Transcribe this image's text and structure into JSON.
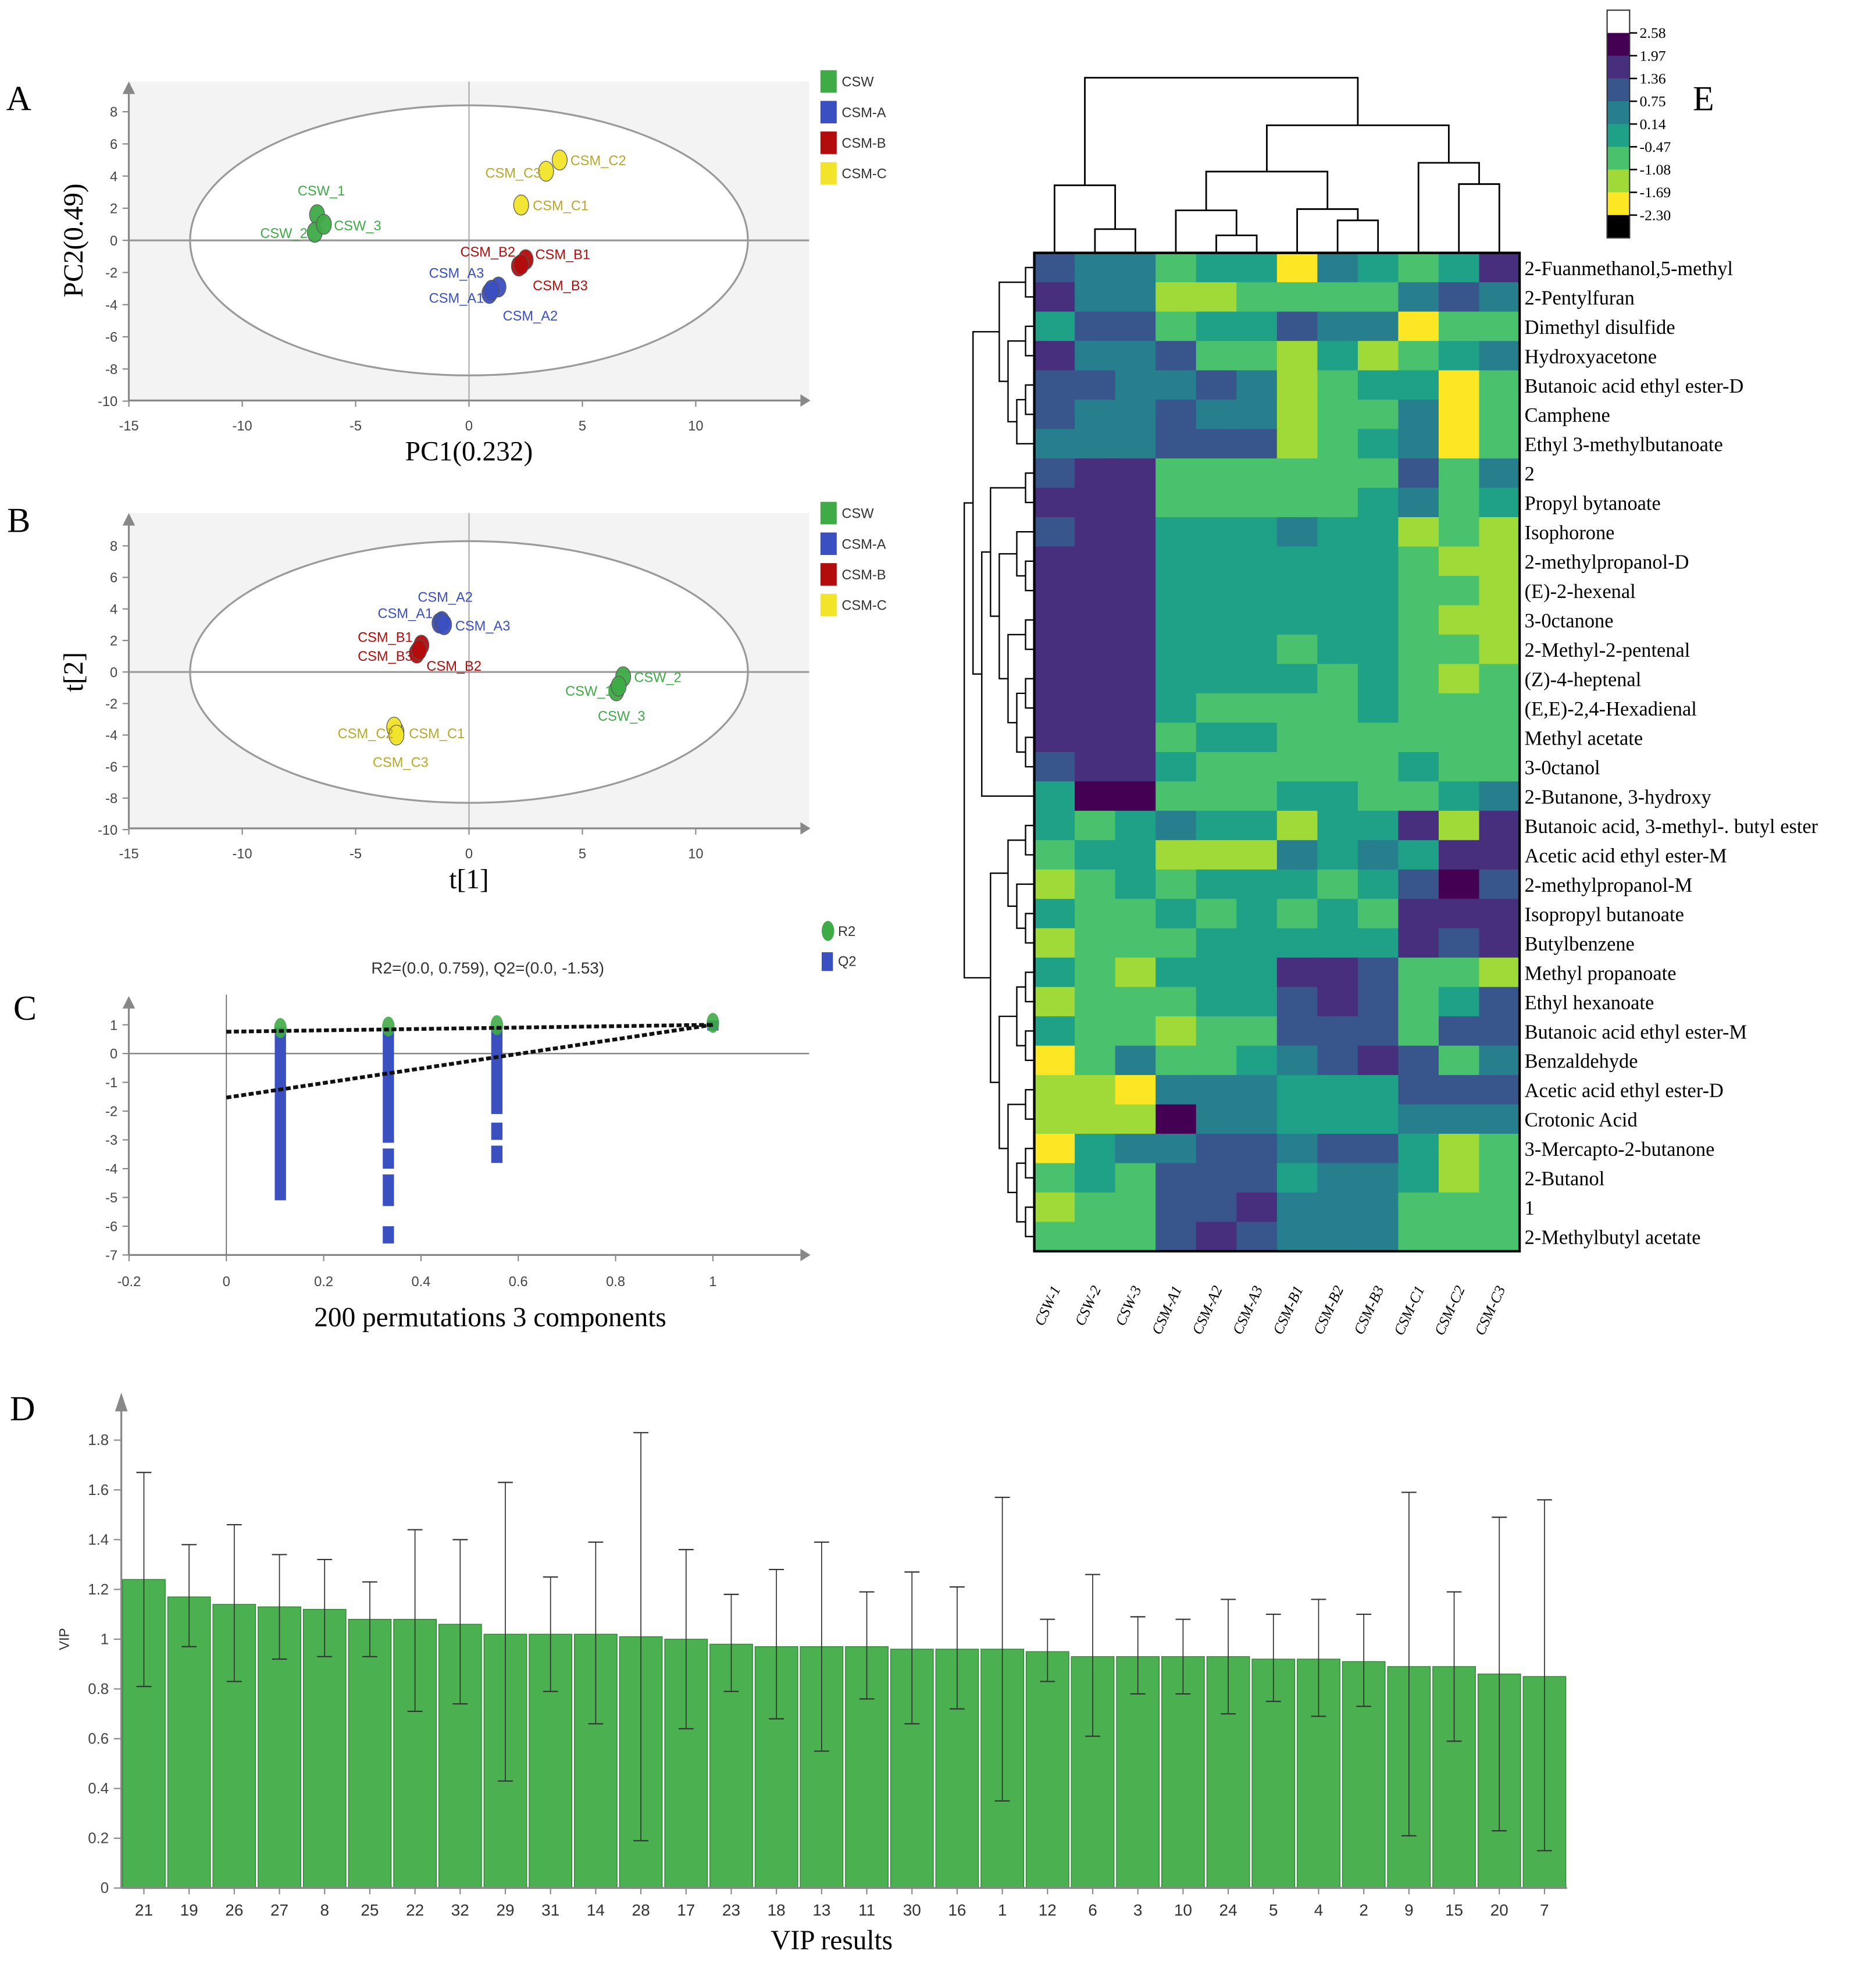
{
  "panel_letters": {
    "a": "A",
    "b": "B",
    "c": "C",
    "d": "D",
    "e": "E"
  },
  "chart_data": [
    {
      "id": "A",
      "type": "scatter",
      "title": "",
      "xlabel": "PC1(0.232)",
      "ylabel": "PC2(0.49)",
      "xlim": [
        -15,
        15
      ],
      "ylim": [
        -10,
        9
      ],
      "xticks": [
        "-15",
        "-10",
        "-5",
        "0",
        "5",
        "10"
      ],
      "yticks": [
        "8",
        "6",
        "4",
        "2",
        "0",
        "-2",
        "-4",
        "-6",
        "-8",
        "-10"
      ],
      "ellipse": {
        "rx": 12.3,
        "ry": 8.4
      },
      "legend": [
        {
          "label": "CSW",
          "color": "#3fab47"
        },
        {
          "label": "CSM-A",
          "color": "#3a4fc0"
        },
        {
          "label": "CSM-B",
          "color": "#b30c0c"
        },
        {
          "label": "CSM-C",
          "color": "#f2e42a"
        }
      ],
      "points": [
        {
          "label": "CSW_1",
          "group": 0,
          "x": -6.7,
          "y": 1.6
        },
        {
          "label": "CSW_2",
          "group": 0,
          "x": -6.8,
          "y": 0.5
        },
        {
          "label": "CSW_3",
          "group": 0,
          "x": -6.4,
          "y": 1.0
        },
        {
          "label": "CSM_A1",
          "group": 1,
          "x": 0.9,
          "y": -3.3
        },
        {
          "label": "CSM_A2",
          "group": 1,
          "x": 1.3,
          "y": -2.9
        },
        {
          "label": "CSM_A3",
          "group": 1,
          "x": 1.0,
          "y": -3.1
        },
        {
          "label": "CSM_B1",
          "group": 2,
          "x": 2.5,
          "y": -1.2
        },
        {
          "label": "CSM_B2",
          "group": 2,
          "x": 2.2,
          "y": -1.6
        },
        {
          "label": "CSM_B3",
          "group": 2,
          "x": 2.3,
          "y": -1.5
        },
        {
          "label": "CSM_C1",
          "group": 3,
          "x": 2.3,
          "y": 2.2
        },
        {
          "label": "CSM_C2",
          "group": 3,
          "x": 4.0,
          "y": 5.0
        },
        {
          "label": "CSM_C3",
          "group": 3,
          "x": 3.4,
          "y": 4.3
        }
      ]
    },
    {
      "id": "B",
      "type": "scatter",
      "title": "",
      "xlabel": "t[1]",
      "ylabel": "t[2]",
      "xlim": [
        -15,
        15
      ],
      "ylim": [
        -10,
        9
      ],
      "xticks": [
        "-15",
        "-10",
        "-5",
        "0",
        "5",
        "10"
      ],
      "yticks": [
        "8",
        "6",
        "4",
        "2",
        "0",
        "-2",
        "-4",
        "-6",
        "-8",
        "-10"
      ],
      "ellipse": {
        "rx": 12.3,
        "ry": 8.3
      },
      "legend": [
        {
          "label": "CSW",
          "color": "#3fab47"
        },
        {
          "label": "CSM-A",
          "color": "#3a4fc0"
        },
        {
          "label": "CSM-B",
          "color": "#b30c0c"
        },
        {
          "label": "CSM-C",
          "color": "#f2e42a"
        }
      ],
      "points": [
        {
          "label": "CSW_1",
          "group": 0,
          "x": 6.5,
          "y": -1.2
        },
        {
          "label": "CSW_2",
          "group": 0,
          "x": 6.8,
          "y": -0.3
        },
        {
          "label": "CSW_3",
          "group": 0,
          "x": 6.6,
          "y": -0.9
        },
        {
          "label": "CSM_A1",
          "group": 1,
          "x": -1.3,
          "y": 3.1
        },
        {
          "label": "CSM_A2",
          "group": 1,
          "x": -1.2,
          "y": 3.2
        },
        {
          "label": "CSM_A3",
          "group": 1,
          "x": -1.1,
          "y": 3.0
        },
        {
          "label": "CSM_B1",
          "group": 2,
          "x": -2.1,
          "y": 1.7
        },
        {
          "label": "CSM_B2",
          "group": 2,
          "x": -2.3,
          "y": 1.2
        },
        {
          "label": "CSM_B3",
          "group": 2,
          "x": -2.2,
          "y": 1.4
        },
        {
          "label": "CSM_C1",
          "group": 3,
          "x": -3.2,
          "y": -3.8
        },
        {
          "label": "CSM_C2",
          "group": 3,
          "x": -3.3,
          "y": -3.5
        },
        {
          "label": "CSM_C3",
          "group": 3,
          "x": -3.2,
          "y": -4.0
        }
      ]
    },
    {
      "id": "C",
      "type": "scatter",
      "title": "R2=(0.0, 0.759), Q2=(0.0, -1.53)",
      "xlabel": "200 permutations 3 components",
      "ylabel": "",
      "xlim": [
        -0.2,
        1.15
      ],
      "ylim": [
        -7,
        1.5
      ],
      "xticks": [
        "-0.2",
        "0",
        "0.2",
        "0.4",
        "0.6",
        "0.8",
        "1"
      ],
      "yticks": [
        "1",
        "0",
        "-1",
        "-2",
        "-3",
        "-4",
        "-5",
        "-6",
        "-7"
      ],
      "legend": [
        {
          "label": "R2",
          "color": "#3fab47"
        },
        {
          "label": "Q2",
          "color": "#3a4fc0"
        }
      ],
      "r2_points": [
        {
          "x": 0.111,
          "y": 0.8
        },
        {
          "x": 0.333,
          "y": 0.85
        },
        {
          "x": 0.556,
          "y": 0.9
        },
        {
          "x": 1.0,
          "y": 0.98
        }
      ],
      "q2_ranges": [
        {
          "x": 0.111,
          "segments": [
            [
              0.9,
              -5.1
            ]
          ]
        },
        {
          "x": 0.333,
          "segments": [
            [
              0.9,
              -3.1
            ],
            [
              -3.3,
              -4.0
            ],
            [
              -4.2,
              -5.3
            ],
            [
              -6.0,
              -6.6
            ]
          ]
        },
        {
          "x": 0.556,
          "segments": [
            [
              0.9,
              -2.1
            ],
            [
              -2.4,
              -3.0
            ],
            [
              -3.2,
              -3.8
            ]
          ]
        },
        {
          "x": 1.0,
          "segments": [
            [
              1.15,
              0.8
            ]
          ]
        }
      ],
      "r2_line": {
        "intercept": 0.759,
        "end": 1.0
      },
      "q2_line": {
        "intercept": -1.53,
        "end": 1.0
      }
    },
    {
      "id": "D",
      "type": "bar",
      "title": "",
      "xlabel": "VIP results",
      "ylabel": "VIP",
      "ylim": [
        0,
        1.9
      ],
      "yticks": [
        "0",
        "0.2",
        "0.4",
        "0.6",
        "0.8",
        "1",
        "1.2",
        "1.4",
        "1.6",
        "1.8"
      ],
      "bar_color": "#4bb04f",
      "categories": [
        "21",
        "19",
        "26",
        "27",
        "8",
        "25",
        "22",
        "32",
        "29",
        "31",
        "14",
        "28",
        "17",
        "23",
        "18",
        "13",
        "11",
        "30",
        "16",
        "1",
        "12",
        "6",
        "3",
        "10",
        "24",
        "5",
        "4",
        "2",
        "9",
        "15",
        "20",
        "7"
      ],
      "values": [
        1.24,
        1.17,
        1.14,
        1.13,
        1.12,
        1.08,
        1.08,
        1.06,
        1.02,
        1.02,
        1.02,
        1.01,
        1.0,
        0.98,
        0.97,
        0.97,
        0.97,
        0.96,
        0.96,
        0.96,
        0.95,
        0.93,
        0.93,
        0.93,
        0.93,
        0.92,
        0.92,
        0.91,
        0.89,
        0.89,
        0.86,
        0.85
      ],
      "error_low": [
        0.81,
        0.97,
        0.83,
        0.92,
        0.93,
        0.93,
        0.71,
        0.74,
        0.43,
        0.79,
        0.66,
        0.19,
        0.64,
        0.79,
        0.68,
        0.55,
        0.76,
        0.66,
        0.72,
        0.35,
        0.83,
        0.61,
        0.78,
        0.78,
        0.7,
        0.75,
        0.69,
        0.73,
        0.21,
        0.59,
        0.23,
        0.15
      ],
      "error_high": [
        1.67,
        1.38,
        1.46,
        1.34,
        1.32,
        1.23,
        1.44,
        1.4,
        1.63,
        1.25,
        1.39,
        1.83,
        1.36,
        1.18,
        1.28,
        1.39,
        1.19,
        1.27,
        1.21,
        1.57,
        1.08,
        1.26,
        1.09,
        1.08,
        1.16,
        1.1,
        1.16,
        1.1,
        1.59,
        1.19,
        1.49,
        1.56
      ]
    },
    {
      "id": "E",
      "type": "heatmap",
      "columns": [
        "CSW-1",
        "CSW-2",
        "CSW-3",
        "CSM-A1",
        "CSM-A2",
        "CSM-A3",
        "CSM-B1",
        "CSM-B2",
        "CSM-B3",
        "CSM-C1",
        "CSM-C2",
        "CSM-C3"
      ],
      "rows": [
        "2-Fuanmethanol,5-methyl",
        "2-Pentylfuran",
        "Dimethyl disulfide",
        "Hydroxyacetone",
        "Butanoic acid ethyl ester-D",
        "Camphene",
        "Ethyl 3-methylbutanoate",
        "2",
        "Propyl bytanoate",
        "Isophorone",
        "2-methylpropanol-D",
        "(E)-2-hexenal",
        "3-0ctanone",
        "2-Methyl-2-pentenal",
        "(Z)-4-heptenal",
        "(E,E)-2,4-Hexadienal",
        "Methyl acetate",
        "3-0ctanol",
        "2-Butanone, 3-hydroxy",
        "Butanoic acid, 3-methyl-. butyl ester",
        "Acetic acid ethyl ester-M",
        "2-methylpropanol-M",
        "Isopropyl butanoate",
        "Butylbenzene",
        "Methyl propanoate",
        "Ethyl hexanoate",
        "Butanoic acid ethyl ester-M",
        "Benzaldehyde",
        "Acetic acid ethyl ester-D",
        "Crotonic Acid",
        "3-Mercapto-2-butanone",
        "2-Butanol",
        "1",
        "2-Methylbutyl acetate"
      ],
      "values": [
        [
          1.1,
          0.4,
          0.4,
          -0.8,
          -0.2,
          -0.2,
          -2.0,
          0.4,
          -0.2,
          -0.8,
          -0.2,
          1.7
        ],
        [
          1.7,
          0.4,
          0.4,
          -1.4,
          -1.4,
          -0.8,
          -0.8,
          -0.8,
          -0.8,
          0.4,
          1.1,
          0.4
        ],
        [
          -0.2,
          1.1,
          1.1,
          -0.8,
          -0.2,
          -0.2,
          1.1,
          0.4,
          0.4,
          -2.0,
          -0.8,
          -0.8
        ],
        [
          1.7,
          0.4,
          0.4,
          1.1,
          -0.8,
          -0.8,
          -1.4,
          -0.2,
          -1.4,
          -0.8,
          -0.2,
          0.4
        ],
        [
          1.1,
          1.1,
          0.4,
          0.4,
          1.1,
          0.4,
          -1.4,
          -0.8,
          -0.2,
          -0.2,
          -2.0,
          -0.8
        ],
        [
          1.1,
          0.4,
          0.4,
          1.1,
          0.4,
          0.4,
          -1.4,
          -0.8,
          -0.8,
          0.4,
          -2.0,
          -0.8
        ],
        [
          0.4,
          0.4,
          0.4,
          1.1,
          1.1,
          1.1,
          -1.4,
          -0.8,
          -0.2,
          0.4,
          -2.0,
          -0.8
        ],
        [
          1.1,
          1.7,
          1.7,
          -0.8,
          -0.8,
          -0.8,
          -0.8,
          -0.8,
          -0.8,
          1.1,
          -0.8,
          0.4
        ],
        [
          1.7,
          1.7,
          1.7,
          -0.8,
          -0.8,
          -0.8,
          -0.8,
          -0.8,
          -0.2,
          0.4,
          -0.8,
          -0.2
        ],
        [
          1.1,
          1.7,
          1.7,
          -0.2,
          -0.2,
          -0.2,
          0.4,
          -0.2,
          -0.2,
          -1.4,
          -0.8,
          -1.4
        ],
        [
          1.7,
          1.7,
          1.7,
          -0.2,
          -0.2,
          -0.2,
          -0.2,
          -0.2,
          -0.2,
          -0.8,
          -1.4,
          -1.4
        ],
        [
          1.7,
          1.7,
          1.7,
          -0.2,
          -0.2,
          -0.2,
          -0.2,
          -0.2,
          -0.2,
          -0.8,
          -0.8,
          -1.4
        ],
        [
          1.7,
          1.7,
          1.7,
          -0.2,
          -0.2,
          -0.2,
          -0.2,
          -0.2,
          -0.2,
          -0.8,
          -1.4,
          -1.4
        ],
        [
          1.7,
          1.7,
          1.7,
          -0.2,
          -0.2,
          -0.2,
          -0.8,
          -0.2,
          -0.2,
          -0.8,
          -0.8,
          -1.4
        ],
        [
          1.7,
          1.7,
          1.7,
          -0.2,
          -0.2,
          -0.2,
          -0.2,
          -0.8,
          -0.2,
          -0.8,
          -1.4,
          -0.8
        ],
        [
          1.7,
          1.7,
          1.7,
          -0.2,
          -0.8,
          -0.8,
          -0.8,
          -0.8,
          -0.2,
          -0.8,
          -0.8,
          -0.8
        ],
        [
          1.7,
          1.7,
          1.7,
          -0.8,
          -0.2,
          -0.2,
          -0.8,
          -0.8,
          -0.8,
          -0.8,
          -0.8,
          -0.8
        ],
        [
          1.1,
          1.7,
          1.7,
          -0.2,
          -0.8,
          -0.8,
          -0.8,
          -0.8,
          -0.8,
          -0.2,
          -0.8,
          -0.8
        ],
        [
          -0.2,
          2.3,
          2.3,
          -0.8,
          -0.8,
          -0.8,
          -0.2,
          -0.2,
          -0.8,
          -0.8,
          -0.2,
          0.4
        ],
        [
          -0.2,
          -0.8,
          -0.2,
          0.4,
          -0.2,
          -0.2,
          -1.4,
          -0.2,
          -0.2,
          1.7,
          -1.4,
          1.7
        ],
        [
          -0.8,
          -0.2,
          -0.2,
          -1.4,
          -1.4,
          -1.4,
          0.4,
          -0.2,
          0.4,
          -0.2,
          1.7,
          1.7
        ],
        [
          -1.4,
          -0.8,
          -0.2,
          -0.8,
          -0.2,
          -0.2,
          -0.2,
          -0.8,
          -0.2,
          1.1,
          2.3,
          1.1
        ],
        [
          -0.2,
          -0.8,
          -0.8,
          -0.2,
          -0.8,
          -0.2,
          -0.8,
          -0.2,
          -0.8,
          1.7,
          1.7,
          1.7
        ],
        [
          -1.4,
          -0.8,
          -0.8,
          -0.8,
          -0.2,
          -0.2,
          -0.2,
          -0.2,
          -0.2,
          1.7,
          1.1,
          1.7
        ],
        [
          -0.2,
          -0.8,
          -1.4,
          -0.2,
          -0.2,
          -0.2,
          1.7,
          1.7,
          1.1,
          -0.8,
          -0.8,
          -1.4
        ],
        [
          -1.4,
          -0.8,
          -0.8,
          -0.8,
          -0.2,
          -0.2,
          1.1,
          1.7,
          1.1,
          -0.8,
          -0.2,
          1.1
        ],
        [
          -0.2,
          -0.8,
          -0.8,
          -1.4,
          -0.8,
          -0.8,
          1.1,
          1.1,
          1.1,
          -0.8,
          1.1,
          1.1
        ],
        [
          -2.0,
          -0.8,
          0.4,
          -0.8,
          -0.8,
          -0.2,
          0.4,
          1.1,
          1.7,
          1.1,
          -0.8,
          0.4
        ],
        [
          -1.4,
          -1.4,
          -2.0,
          0.4,
          0.4,
          0.4,
          -0.2,
          -0.2,
          -0.2,
          1.1,
          1.1,
          1.1
        ],
        [
          -1.4,
          -1.4,
          -1.4,
          2.3,
          0.4,
          0.4,
          -0.2,
          -0.2,
          -0.2,
          0.4,
          0.4,
          0.4
        ],
        [
          -2.0,
          -0.2,
          0.4,
          0.4,
          1.1,
          1.1,
          0.4,
          1.1,
          1.1,
          -0.2,
          -1.4,
          -0.8
        ],
        [
          -0.8,
          -0.2,
          -0.8,
          1.1,
          1.1,
          1.1,
          -0.2,
          0.4,
          0.4,
          -0.2,
          -1.4,
          -0.8
        ],
        [
          -1.4,
          -0.8,
          -0.8,
          1.1,
          1.1,
          1.7,
          0.4,
          0.4,
          0.4,
          -0.8,
          -0.8,
          -0.8
        ],
        [
          -0.8,
          -0.8,
          -0.8,
          1.1,
          1.7,
          1.1,
          0.4,
          0.4,
          0.4,
          -0.8,
          -0.8,
          -0.8
        ]
      ],
      "colorbar": {
        "ticks": [
          "2.58",
          "1.97",
          "1.36",
          "0.75",
          "0.14",
          "-0.47",
          "-1.08",
          "-1.69",
          "-2.30"
        ],
        "thresholds": [
          2.58,
          1.97,
          1.36,
          0.75,
          0.14,
          -0.47,
          -1.08,
          -1.69,
          -2.3
        ],
        "colors": [
          "#ffffff",
          "#440154",
          "#472f7d",
          "#39568c",
          "#277f8e",
          "#1fa187",
          "#4ac16d",
          "#a0da39",
          "#fde725",
          "#000000"
        ]
      }
    }
  ]
}
